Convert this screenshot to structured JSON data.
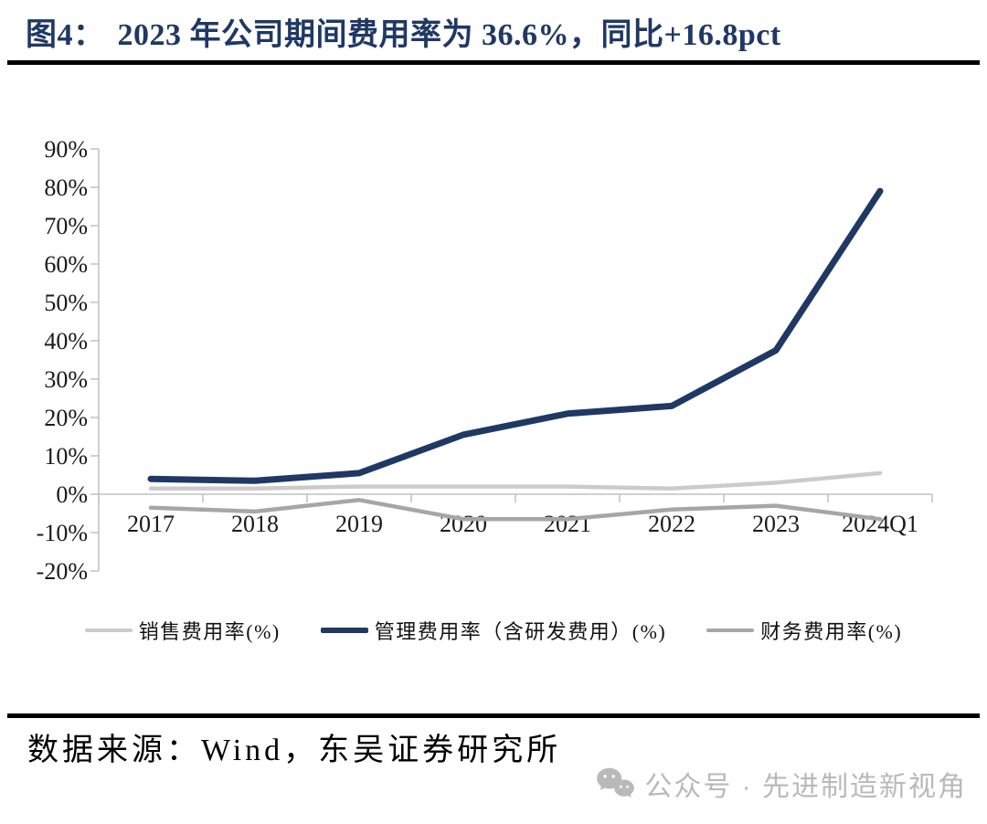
{
  "title": {
    "figure_label": "图4：",
    "text": "2023 年公司期间费用率为 36.6%，同比+16.8pct"
  },
  "chart_data": {
    "type": "line",
    "title": "2023 年公司期间费用率为 36.6%，同比+16.8pct",
    "categories": [
      "2017",
      "2018",
      "2019",
      "2020",
      "2021",
      "2022",
      "2023",
      "2024Q1"
    ],
    "series": [
      {
        "name": "销售费用率(%)",
        "color": "#cbcbcb",
        "values": [
          1.5,
          1.5,
          2,
          2,
          2,
          1.5,
          3,
          5.5
        ]
      },
      {
        "name": "管理费用率（含研发费用）(%)",
        "color": "#1f3864",
        "values": [
          4,
          3.5,
          5.5,
          15.5,
          21,
          23,
          37.5,
          79
        ]
      },
      {
        "name": "财务费用率(%)",
        "color": "#a6a6a6",
        "values": [
          -3.5,
          -4.5,
          -1.5,
          -6.5,
          -6.5,
          -4,
          -3,
          -6.5
        ]
      }
    ],
    "xlabel": "",
    "ylabel": "",
    "ylim": [
      -20,
      90
    ],
    "ytick_step": 10,
    "ytick_labels": [
      "90%",
      "80%",
      "70%",
      "60%",
      "50%",
      "40%",
      "30%",
      "20%",
      "10%",
      "0%",
      "-10%",
      "-20%"
    ],
    "grid": false,
    "legend_position": "bottom",
    "axis_color": "#c0c0c0",
    "label_color": "#1a1a1a"
  },
  "footer": {
    "source": "数据来源：Wind，东吴证券研究所"
  },
  "watermark": {
    "icon": "wechat-icon",
    "text": "公众号 · 先进制造新视角"
  }
}
